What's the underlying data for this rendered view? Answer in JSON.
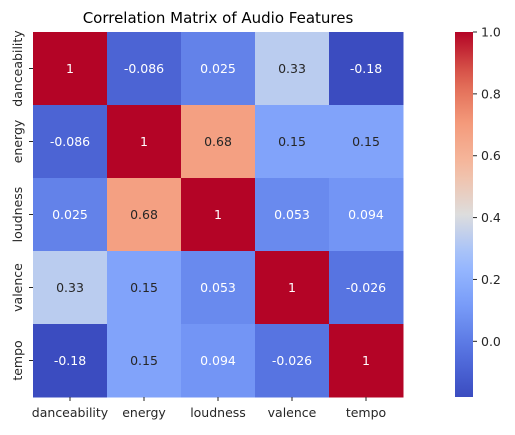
{
  "chart_data": {
    "type": "heatmap",
    "title": "Correlation Matrix of Audio Features",
    "x_categories": [
      "danceability",
      "energy",
      "loudness",
      "valence",
      "tempo"
    ],
    "y_categories": [
      "danceability",
      "energy",
      "loudness",
      "valence",
      "tempo"
    ],
    "values": [
      [
        1,
        -0.086,
        0.025,
        0.33,
        -0.18
      ],
      [
        -0.086,
        1,
        0.68,
        0.15,
        0.15
      ],
      [
        0.025,
        0.68,
        1,
        0.053,
        0.094
      ],
      [
        0.33,
        0.15,
        0.053,
        1,
        -0.026
      ],
      [
        -0.18,
        0.15,
        0.094,
        -0.026,
        1
      ]
    ],
    "value_labels": [
      [
        "1",
        "-0.086",
        "0.025",
        "0.33",
        "-0.18"
      ],
      [
        "-0.086",
        "1",
        "0.68",
        "0.15",
        "0.15"
      ],
      [
        "0.025",
        "0.68",
        "1",
        "0.053",
        "0.094"
      ],
      [
        "0.33",
        "0.15",
        "0.053",
        "1",
        "-0.026"
      ],
      [
        "-0.18",
        "0.15",
        "0.094",
        "-0.026",
        "1"
      ]
    ],
    "colormap": "coolwarm",
    "color_range": [
      -0.18,
      1
    ],
    "colorbar_ticks": [
      "0.0",
      "0.2",
      "0.4",
      "0.6",
      "0.8",
      "1.0"
    ],
    "colorbar_tick_values": [
      0,
      0.2,
      0.4,
      0.6,
      0.8,
      1.0
    ],
    "legend_placement": "right colorbar",
    "grid": false
  }
}
